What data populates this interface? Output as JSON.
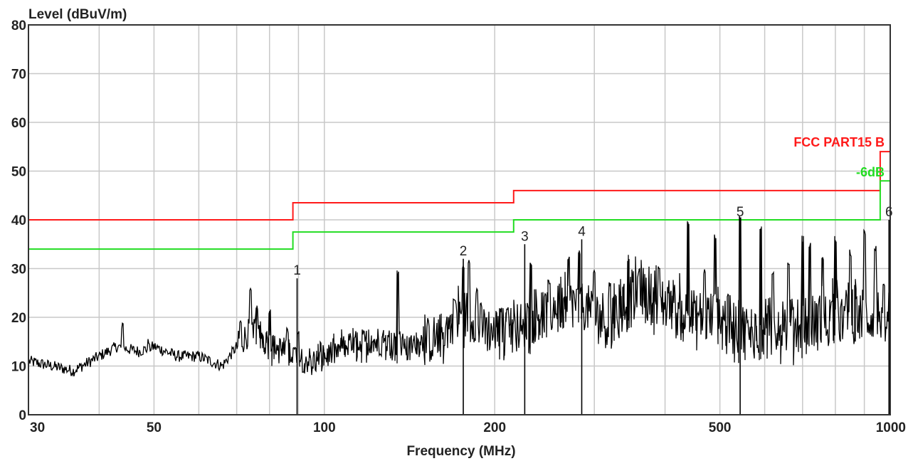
{
  "chart_data": {
    "type": "line",
    "title": "",
    "ylabel": "Level (dBuV/m)",
    "xlabel": "Frequency (MHz)",
    "x_scale": "log",
    "xlim": [
      30,
      1000
    ],
    "ylim": [
      0,
      80
    ],
    "grid": true,
    "x_ticks": [
      30,
      40,
      50,
      60,
      70,
      80,
      90,
      100,
      200,
      300,
      400,
      500,
      600,
      700,
      800,
      900,
      1000
    ],
    "x_tick_labels": [
      {
        "value": 30,
        "label": "30"
      },
      {
        "value": 50,
        "label": "50"
      },
      {
        "value": 100,
        "label": "100"
      },
      {
        "value": 200,
        "label": "200"
      },
      {
        "value": 500,
        "label": "500"
      },
      {
        "value": 1000,
        "label": "1000"
      }
    ],
    "y_ticks": [
      0,
      10,
      20,
      30,
      40,
      50,
      60,
      70,
      80
    ],
    "y_tick_labels": [
      "0",
      "10",
      "20",
      "30",
      "40",
      "50",
      "60",
      "70",
      "80"
    ],
    "limit_lines": [
      {
        "name": "FCC PART15 B",
        "color": "#ff1a1a",
        "steps": [
          {
            "x0": 30,
            "x1": 88,
            "y": 40
          },
          {
            "x0": 88,
            "x1": 216,
            "y": 43.5
          },
          {
            "x0": 216,
            "x1": 960,
            "y": 46
          },
          {
            "x0": 960,
            "x1": 1000,
            "y": 54
          }
        ]
      },
      {
        "name": "-6dB",
        "color": "#22dd22",
        "steps": [
          {
            "x0": 30,
            "x1": 88,
            "y": 34
          },
          {
            "x0": 88,
            "x1": 216,
            "y": 37.5
          },
          {
            "x0": 216,
            "x1": 960,
            "y": 40
          },
          {
            "x0": 960,
            "x1": 1000,
            "y": 48
          }
        ]
      }
    ],
    "spectrum": {
      "color": "#000000",
      "anchors": [
        [
          30,
          11
        ],
        [
          33,
          10
        ],
        [
          36,
          9
        ],
        [
          40,
          12
        ],
        [
          43,
          14
        ],
        [
          47,
          13
        ],
        [
          50,
          14
        ],
        [
          55,
          12
        ],
        [
          60,
          12
        ],
        [
          66,
          10
        ],
        [
          70,
          14
        ],
        [
          75,
          18
        ],
        [
          80,
          14
        ],
        [
          85,
          13
        ],
        [
          90,
          12
        ],
        [
          95,
          11
        ],
        [
          100,
          12
        ],
        [
          110,
          14
        ],
        [
          120,
          15
        ],
        [
          130,
          15
        ],
        [
          140,
          14
        ],
        [
          150,
          15
        ],
        [
          160,
          16
        ],
        [
          170,
          20
        ],
        [
          180,
          21
        ],
        [
          190,
          18
        ],
        [
          200,
          17
        ],
        [
          220,
          18
        ],
        [
          240,
          20
        ],
        [
          260,
          22
        ],
        [
          280,
          23
        ],
        [
          300,
          21
        ],
        [
          320,
          19
        ],
        [
          350,
          24
        ],
        [
          380,
          25
        ],
        [
          420,
          21
        ],
        [
          460,
          20
        ],
        [
          500,
          20
        ],
        [
          530,
          18
        ],
        [
          560,
          17
        ],
        [
          600,
          18
        ],
        [
          650,
          18
        ],
        [
          700,
          19
        ],
        [
          750,
          19
        ],
        [
          800,
          20
        ],
        [
          850,
          20
        ],
        [
          900,
          20
        ],
        [
          950,
          21
        ],
        [
          1000,
          21
        ]
      ],
      "peaks": [
        [
          44,
          19
        ],
        [
          49,
          16
        ],
        [
          71,
          20
        ],
        [
          74,
          27
        ],
        [
          76,
          23
        ],
        [
          80,
          22
        ],
        [
          86,
          18
        ],
        [
          90,
          18
        ],
        [
          135,
          30
        ],
        [
          170,
          24
        ],
        [
          176,
          31
        ],
        [
          180,
          32
        ],
        [
          186,
          26
        ],
        [
          205,
          22
        ],
        [
          210,
          22
        ],
        [
          232,
          32
        ],
        [
          250,
          28
        ],
        [
          270,
          33
        ],
        [
          282,
          34
        ],
        [
          300,
          30
        ],
        [
          320,
          28
        ],
        [
          345,
          33
        ],
        [
          360,
          30
        ],
        [
          390,
          31
        ],
        [
          440,
          40
        ],
        [
          470,
          30
        ],
        [
          490,
          37
        ],
        [
          543,
          41
        ],
        [
          590,
          39
        ],
        [
          620,
          30
        ],
        [
          660,
          32
        ],
        [
          700,
          37
        ],
        [
          720,
          36
        ],
        [
          760,
          33
        ],
        [
          800,
          37
        ],
        [
          850,
          34
        ],
        [
          900,
          38
        ],
        [
          940,
          35
        ]
      ]
    },
    "markers": [
      {
        "label": "1",
        "x": 89.5,
        "y": 28
      },
      {
        "label": "2",
        "x": 176,
        "y": 32
      },
      {
        "label": "3",
        "x": 226,
        "y": 35
      },
      {
        "label": "4",
        "x": 285,
        "y": 36
      },
      {
        "label": "5",
        "x": 543,
        "y": 40
      },
      {
        "label": "6",
        "x": 995,
        "y": 40
      }
    ]
  }
}
